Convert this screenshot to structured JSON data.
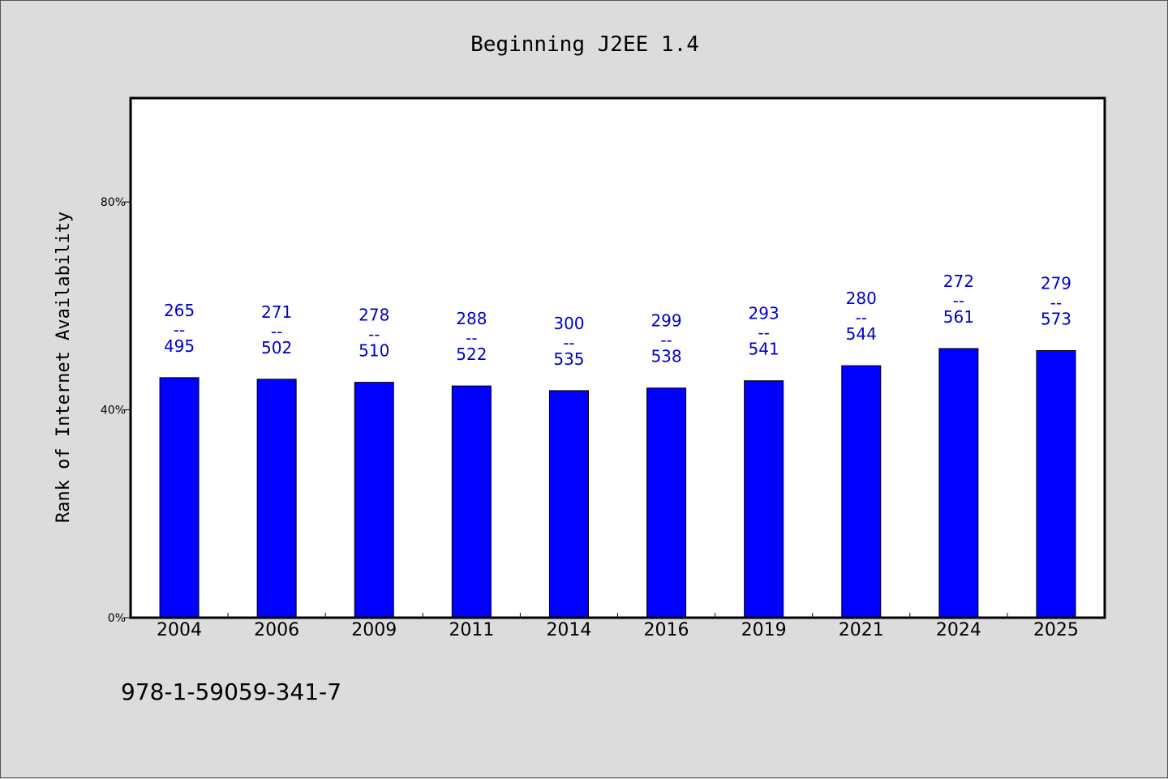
{
  "chart_data": {
    "type": "bar",
    "title": "Beginning J2EE 1.4",
    "ylabel": "Rank of Internet Availability",
    "xlabel": "",
    "ylim": [
      0,
      100
    ],
    "yticks": [
      {
        "value": 0,
        "label": "0%"
      },
      {
        "value": 40,
        "label": "40%"
      },
      {
        "value": 80,
        "label": "80%"
      }
    ],
    "categories": [
      "2004",
      "2006",
      "2009",
      "2011",
      "2014",
      "2016",
      "2019",
      "2021",
      "2024",
      "2025"
    ],
    "series": [
      {
        "values": [
          46.2,
          45.9,
          45.3,
          44.6,
          43.7,
          44.2,
          45.6,
          48.5,
          51.8,
          51.4
        ],
        "ranks": [
          "265",
          "271",
          "278",
          "288",
          "300",
          "299",
          "293",
          "280",
          "272",
          "279"
        ],
        "totals": [
          "495",
          "502",
          "510",
          "522",
          "535",
          "538",
          "541",
          "544",
          "561",
          "573"
        ],
        "separator": "--",
        "color": "#0000ff"
      }
    ],
    "grid": false,
    "legend": "none"
  },
  "footnote": "978-1-59059-341-7",
  "colors": {
    "background": "#dcdcdc",
    "plot_background": "#ffffff",
    "bar": "#0000ff",
    "data_label": "#0000cc"
  }
}
